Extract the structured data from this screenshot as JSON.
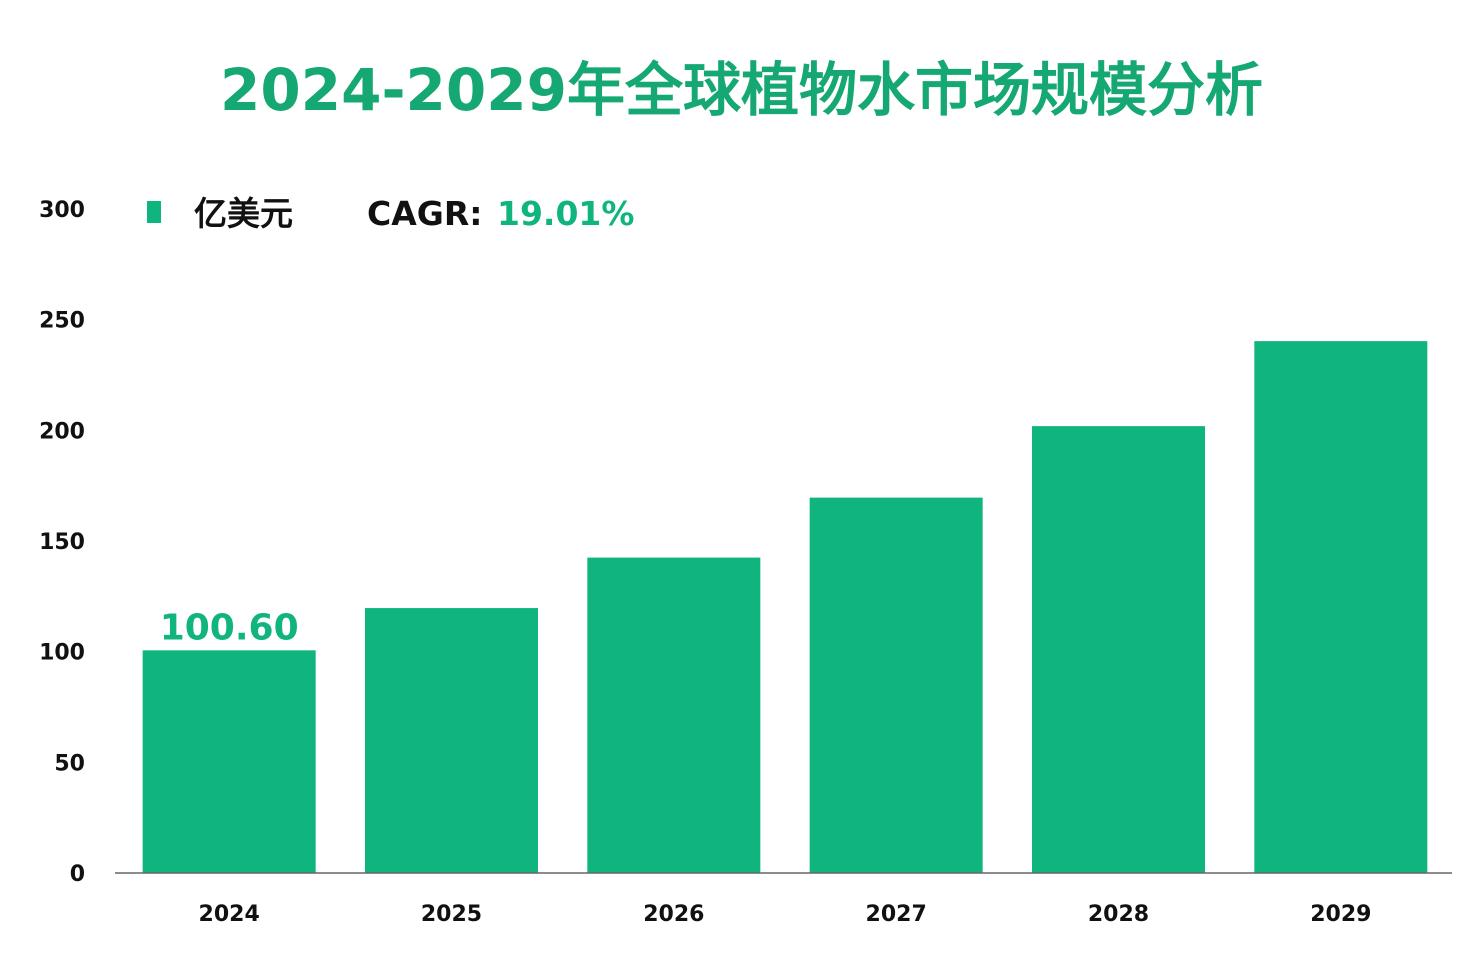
{
  "colors": {
    "accent": "#10b47e",
    "title": "#16a872",
    "text": "#111111",
    "axis": "#666666"
  },
  "chart_data": {
    "type": "bar",
    "title": "2024-2029年全球植物水市场规模分析",
    "categories": [
      "2024",
      "2025",
      "2026",
      "2027",
      "2028",
      "2029"
    ],
    "series": [
      {
        "name": "亿美元",
        "values": [
          100.6,
          119.7,
          142.5,
          169.6,
          201.9,
          240.3
        ]
      }
    ],
    "data_labels": [
      {
        "category": "2024",
        "text": "100.60"
      }
    ],
    "legend": {
      "position": "top-left",
      "label": "亿美元"
    },
    "annotation": {
      "label": "CAGR:",
      "value": "19.01%"
    },
    "ylim": [
      0,
      300
    ],
    "yticks": [
      0,
      50,
      100,
      150,
      200,
      250,
      300
    ],
    "xlabel": "",
    "ylabel": "",
    "grid": false
  }
}
